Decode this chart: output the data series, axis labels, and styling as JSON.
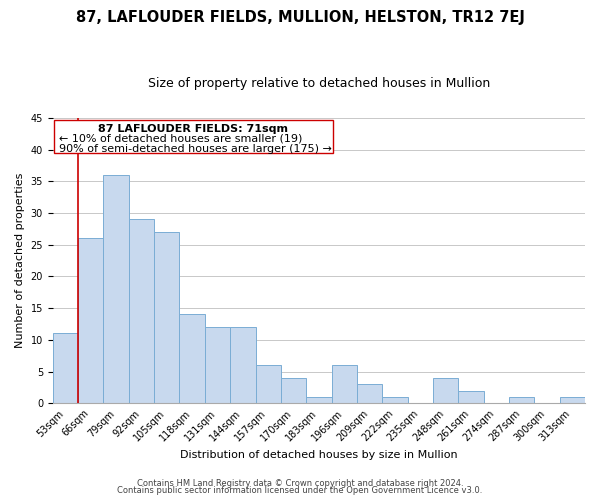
{
  "title": "87, LAFLOUDER FIELDS, MULLION, HELSTON, TR12 7EJ",
  "subtitle": "Size of property relative to detached houses in Mullion",
  "xlabel": "Distribution of detached houses by size in Mullion",
  "ylabel": "Number of detached properties",
  "categories": [
    "53sqm",
    "66sqm",
    "79sqm",
    "92sqm",
    "105sqm",
    "118sqm",
    "131sqm",
    "144sqm",
    "157sqm",
    "170sqm",
    "183sqm",
    "196sqm",
    "209sqm",
    "222sqm",
    "235sqm",
    "248sqm",
    "261sqm",
    "274sqm",
    "287sqm",
    "300sqm",
    "313sqm"
  ],
  "values": [
    11,
    26,
    36,
    29,
    27,
    14,
    12,
    12,
    6,
    4,
    1,
    6,
    3,
    1,
    0,
    4,
    2,
    0,
    1,
    0,
    1
  ],
  "bar_color": "#c8d9ee",
  "bar_edge_color": "#7aadd4",
  "marker_label": "87 LAFLOUDER FIELDS: 71sqm",
  "annotation_smaller": "← 10% of detached houses are smaller (19)",
  "annotation_larger": "90% of semi-detached houses are larger (175) →",
  "ylim": [
    0,
    45
  ],
  "footer1": "Contains HM Land Registry data © Crown copyright and database right 2024.",
  "footer2": "Contains public sector information licensed under the Open Government Licence v3.0.",
  "marker_color": "#cc0000",
  "grid_color": "#c8c8c8",
  "title_fontsize": 10.5,
  "subtitle_fontsize": 9,
  "axis_label_fontsize": 8,
  "tick_fontsize": 7,
  "annotation_fontsize": 8,
  "footer_fontsize": 6
}
